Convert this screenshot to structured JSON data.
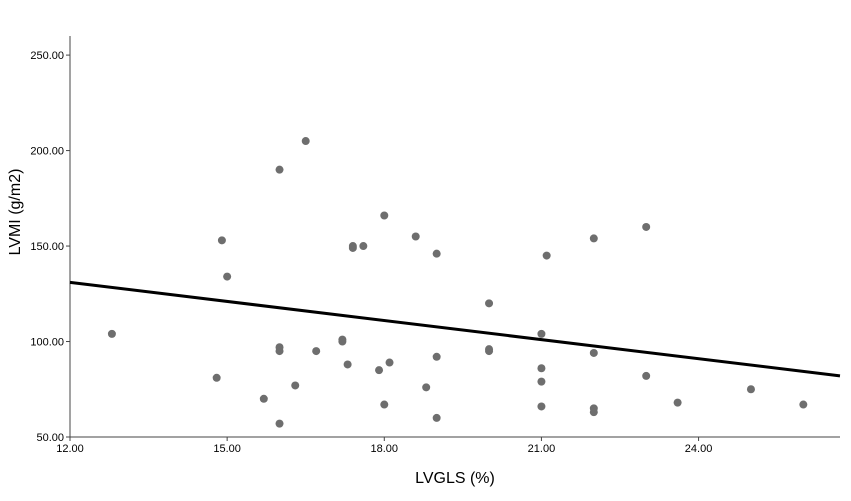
{
  "chart_data": {
    "type": "scatter",
    "xlabel": "LVGLS (%)",
    "ylabel": "LVMI (g/m2)",
    "xlim": [
      12.0,
      26.7
    ],
    "ylim": [
      50.0,
      260.0
    ],
    "xticks": [
      "12.00",
      "15.00",
      "18.00",
      "21.00",
      "24.00"
    ],
    "xtick_values": [
      12,
      15,
      18,
      21,
      24
    ],
    "yticks": [
      "50.00",
      "100.00",
      "150.00",
      "200.00",
      "250.00"
    ],
    "ytick_values": [
      50,
      100,
      150,
      200,
      250
    ],
    "grid": false,
    "series": [
      {
        "marker_color": "#6e6e6e",
        "points": [
          [
            12.8,
            104
          ],
          [
            14.8,
            81
          ],
          [
            14.9,
            153
          ],
          [
            15.0,
            134
          ],
          [
            15.7,
            70
          ],
          [
            16.0,
            190
          ],
          [
            16.0,
            97
          ],
          [
            16.0,
            95
          ],
          [
            16.0,
            57
          ],
          [
            16.3,
            77
          ],
          [
            16.5,
            205
          ],
          [
            16.7,
            95
          ],
          [
            17.2,
            101
          ],
          [
            17.2,
            100
          ],
          [
            17.3,
            88
          ],
          [
            17.4,
            150
          ],
          [
            17.4,
            149
          ],
          [
            17.6,
            150
          ],
          [
            17.9,
            85
          ],
          [
            18.0,
            166
          ],
          [
            18.0,
            67
          ],
          [
            18.1,
            89
          ],
          [
            18.6,
            155
          ],
          [
            18.8,
            76
          ],
          [
            19.0,
            146
          ],
          [
            19.0,
            92
          ],
          [
            19.0,
            60
          ],
          [
            20.0,
            120
          ],
          [
            20.0,
            96
          ],
          [
            20.0,
            95
          ],
          [
            21.0,
            104
          ],
          [
            21.0,
            86
          ],
          [
            21.0,
            79
          ],
          [
            21.0,
            66
          ],
          [
            21.1,
            145
          ],
          [
            22.0,
            154
          ],
          [
            22.0,
            94
          ],
          [
            22.0,
            65
          ],
          [
            22.0,
            63
          ],
          [
            23.0,
            160
          ],
          [
            23.0,
            82
          ],
          [
            23.6,
            68
          ],
          [
            25.0,
            75
          ],
          [
            26.0,
            67
          ]
        ]
      }
    ],
    "fit_line": {
      "x": [
        12.0,
        26.7
      ],
      "y": [
        131.0,
        82.0
      ],
      "color": "#000000"
    }
  }
}
